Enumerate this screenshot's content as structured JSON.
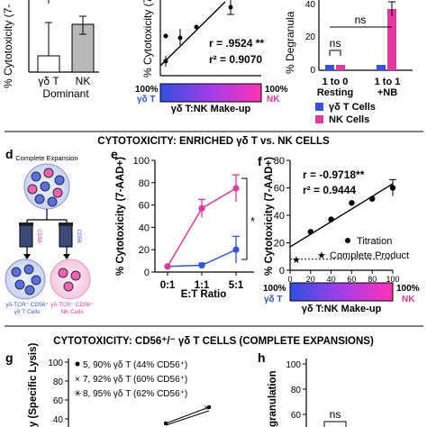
{
  "panel_labels": {
    "d": "d",
    "e": "e",
    "f": "f",
    "g": "g",
    "h": "h"
  },
  "section_titles": {
    "s2": "CYTOTOXICITY: ENRICHED γδ T vs. NK CELLS",
    "s3": "CYTOTOXICITY: CD56⁺/⁻ γδ T CELLS (COMPLETE EXPANSIONS)"
  },
  "colors": {
    "gdt": "#3355dd",
    "nk": "#e0399f",
    "bar_gdt": "#ffffff",
    "bar_nk": "#b8b8b8"
  },
  "top_left": {
    "ylabel": "% Cytotoxicity (7-",
    "categories": [
      "γδ T",
      "NK"
    ],
    "sublabel": "Dominant"
  },
  "top_middle": {
    "ylabel": "% Cytotoxicity (7",
    "stat_r": "r = .9524 **",
    "stat_r2": "r² = 0.9070",
    "bar_left": "100%",
    "bar_right": "100%",
    "bar_left_label": "γδ T",
    "bar_right_label": "NK",
    "bar_caption": "γδ T:NK Make-up"
  },
  "top_right": {
    "ylabel": "% Degranula",
    "yticks": [
      "0",
      "20",
      "40"
    ],
    "ns_top": "ns",
    "ns_inner": "ns",
    "groups": [
      {
        "l1": "1 to 0",
        "l2": "Resting"
      },
      {
        "l1": "1 to 1",
        "l2": "+NB"
      }
    ],
    "legend": [
      "γδ T Cells",
      "NK Cells"
    ]
  },
  "panel_d": {
    "title": "Complete Expansion",
    "tube_left": "CD56",
    "tube_right": "CD56",
    "label_left_1": "γδ-TCR⁺ CD56⁺",
    "label_left_2": "γδ T Cells",
    "label_right_1": "γδ-TCR⁻ CD56⁺",
    "label_right_2": "NK Cells"
  },
  "chart_data": [
    {
      "type": "line",
      "id": "e",
      "xlabel": "E:T Ratio",
      "ylabel": "% Cytotoxicity (7-AAD+)",
      "categories": [
        "0:1",
        "1:1",
        "5:1"
      ],
      "ylim": [
        0,
        100
      ],
      "yticks": [
        0,
        20,
        40,
        60,
        80,
        100
      ],
      "significance": "*",
      "series": [
        {
          "key": "gdt",
          "values": [
            5,
            6,
            20
          ],
          "errors": [
            0,
            2,
            12
          ]
        },
        {
          "key": "nk",
          "values": [
            5,
            57,
            75
          ],
          "errors": [
            0,
            8,
            12
          ]
        }
      ]
    },
    {
      "type": "scatter",
      "id": "f",
      "ylabel": "% Cytotoxicity (7-AAD+)",
      "xlim": [
        0,
        100
      ],
      "ylim": [
        0,
        80
      ],
      "xticks": [
        0,
        20,
        40,
        60,
        80,
        100
      ],
      "yticks": [
        0,
        20,
        40,
        60,
        80
      ],
      "stat_r": "r = -0.9718**",
      "stat_r2": "r² = 0.9444",
      "legend": [
        "Titration",
        "Complete Product"
      ],
      "x": [
        20,
        40,
        60,
        80,
        100
      ],
      "y": [
        28,
        37,
        49,
        52,
        60
      ],
      "yerr": [
        0,
        0,
        0,
        0,
        6
      ],
      "complete_product": {
        "x": 0,
        "y": 8
      },
      "fit": [
        [
          0,
          17
        ],
        [
          100,
          63
        ]
      ],
      "bar_left": "100%",
      "bar_right": "100%",
      "bar_left_label": "γδ T",
      "bar_right_label": "NK",
      "bar_caption": "γδ T:NK Make-up"
    }
  ],
  "panel_g": {
    "ylabel": "ty (Specific Lysis)",
    "yticks": [
      "100",
      "80",
      "60",
      "40"
    ],
    "legend": [
      "5, 90% γδ T (44% CD56⁺)",
      "7, 92% γδ T (60% CD56⁺)",
      "8, 95% γδ T (62% CD56⁺)"
    ]
  },
  "panel_h": {
    "ylabel": "granulation",
    "yticks": [
      "100",
      "80",
      "60"
    ],
    "ns": "ns"
  }
}
